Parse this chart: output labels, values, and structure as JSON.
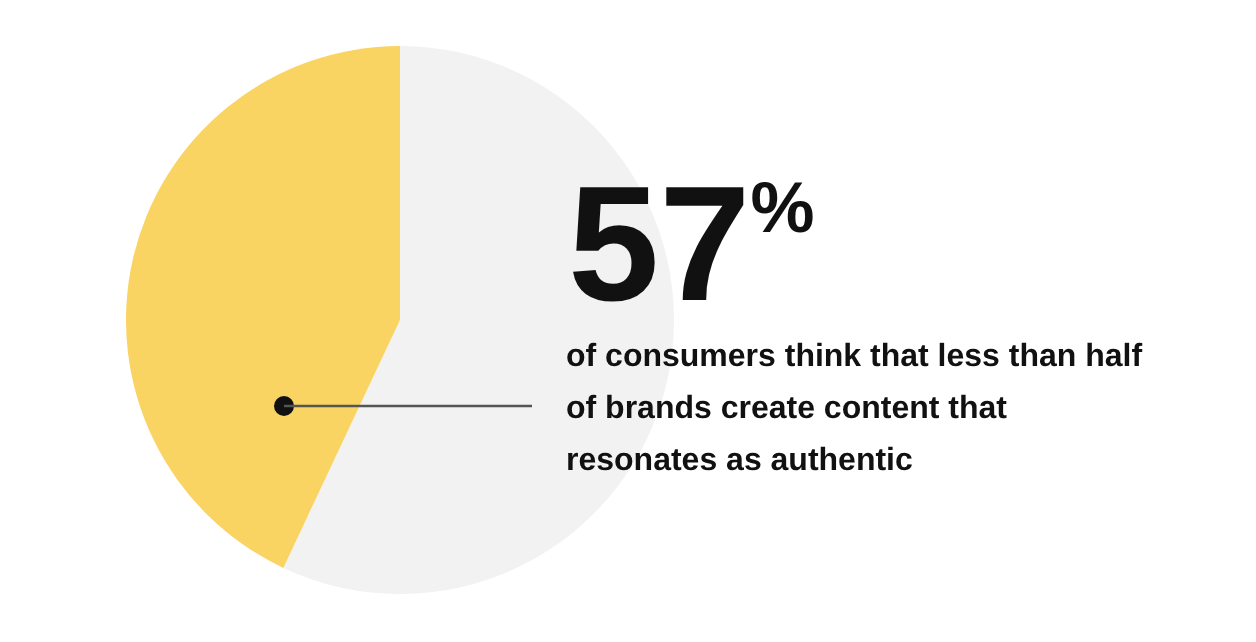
{
  "chart_data": {
    "type": "pie",
    "categories": [
      null,
      null
    ],
    "values": [
      57,
      43
    ],
    "colors": [
      "#f2f2f2",
      "#f9d462"
    ],
    "annotations": [
      "57%",
      "of consumers think that less than half of brands create content that resonates as authentic"
    ]
  }
}
